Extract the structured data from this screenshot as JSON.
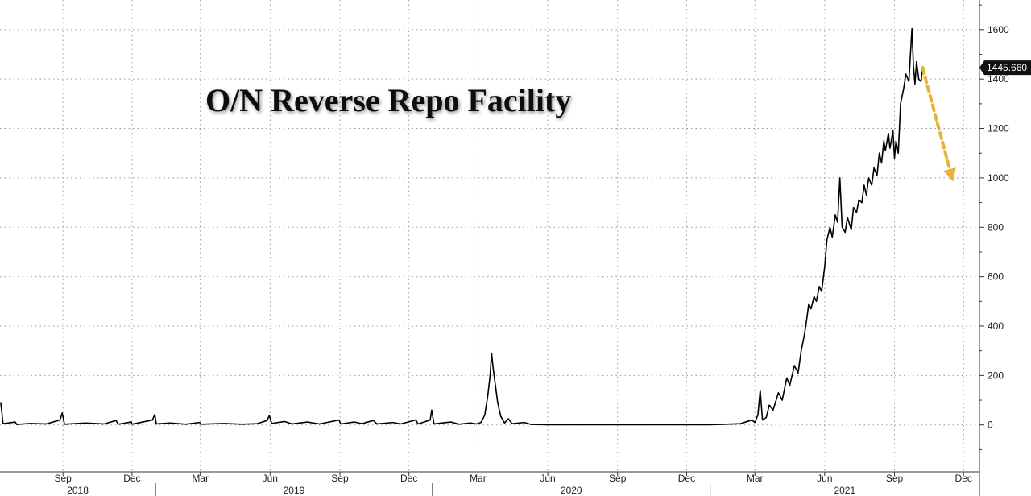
{
  "chart_data": {
    "type": "line",
    "title": "O/N Reverse Repo Facility",
    "current_value_label": "1445.660",
    "ylim": [
      -190,
      1720
    ],
    "xlim": [
      "2018-06-10",
      "2021-12-22"
    ],
    "y_ticks": [
      0,
      200,
      400,
      600,
      800,
      1000,
      1200,
      1400,
      1600
    ],
    "x_ticks": [
      {
        "label": "Sep",
        "date": "2018-09-01"
      },
      {
        "label": "Dec",
        "date": "2018-12-01"
      },
      {
        "label": "Mar",
        "date": "2019-03-01"
      },
      {
        "label": "Jun",
        "date": "2019-06-01"
      },
      {
        "label": "Sep",
        "date": "2019-09-01"
      },
      {
        "label": "Dec",
        "date": "2019-12-01"
      },
      {
        "label": "Mar",
        "date": "2020-03-01"
      },
      {
        "label": "Jun",
        "date": "2020-06-01"
      },
      {
        "label": "Sep",
        "date": "2020-09-01"
      },
      {
        "label": "Dec",
        "date": "2020-12-01"
      },
      {
        "label": "Mar",
        "date": "2021-03-01"
      },
      {
        "label": "Jun",
        "date": "2021-06-01"
      },
      {
        "label": "Sep",
        "date": "2021-09-01"
      },
      {
        "label": "Dec",
        "date": "2021-12-01"
      }
    ],
    "years": [
      {
        "label": "2018",
        "start": "2018-06-10",
        "end": "2019-01-01"
      },
      {
        "label": "2019",
        "start": "2019-01-01",
        "end": "2020-01-01"
      },
      {
        "label": "2020",
        "start": "2020-01-01",
        "end": "2021-01-01"
      },
      {
        "label": "2021",
        "start": "2021-01-01",
        "end": "2021-12-22"
      }
    ],
    "grid": true,
    "y_axis_position": "right",
    "series": [
      {
        "line_color": "#000000",
        "points": [
          [
            "2018-06-11",
            90
          ],
          [
            "2018-06-14",
            5
          ],
          [
            "2018-06-30",
            12
          ],
          [
            "2018-07-02",
            2
          ],
          [
            "2018-07-20",
            6
          ],
          [
            "2018-08-10",
            4
          ],
          [
            "2018-08-28",
            20
          ],
          [
            "2018-08-31",
            48
          ],
          [
            "2018-09-03",
            3
          ],
          [
            "2018-10-01",
            8
          ],
          [
            "2018-10-25",
            4
          ],
          [
            "2018-11-10",
            18
          ],
          [
            "2018-11-13",
            3
          ],
          [
            "2018-11-30",
            12
          ],
          [
            "2018-12-01",
            3
          ],
          [
            "2018-12-28",
            20
          ],
          [
            "2018-12-31",
            42
          ],
          [
            "2019-01-02",
            4
          ],
          [
            "2019-01-20",
            8
          ],
          [
            "2019-02-10",
            3
          ],
          [
            "2019-02-28",
            10
          ],
          [
            "2019-03-02",
            3
          ],
          [
            "2019-04-01",
            6
          ],
          [
            "2019-04-25",
            3
          ],
          [
            "2019-05-15",
            5
          ],
          [
            "2019-05-28",
            18
          ],
          [
            "2019-05-31",
            38
          ],
          [
            "2019-06-03",
            6
          ],
          [
            "2019-06-20",
            14
          ],
          [
            "2019-06-30",
            4
          ],
          [
            "2019-07-20",
            12
          ],
          [
            "2019-08-05",
            4
          ],
          [
            "2019-08-31",
            20
          ],
          [
            "2019-09-02",
            4
          ],
          [
            "2019-09-20",
            12
          ],
          [
            "2019-09-30",
            5
          ],
          [
            "2019-10-15",
            18
          ],
          [
            "2019-10-20",
            4
          ],
          [
            "2019-11-10",
            10
          ],
          [
            "2019-11-20",
            4
          ],
          [
            "2019-12-10",
            20
          ],
          [
            "2019-12-13",
            4
          ],
          [
            "2019-12-29",
            20
          ],
          [
            "2019-12-31",
            60
          ],
          [
            "2020-01-03",
            4
          ],
          [
            "2020-01-25",
            12
          ],
          [
            "2020-02-05",
            3
          ],
          [
            "2020-02-20",
            8
          ],
          [
            "2020-02-28",
            4
          ],
          [
            "2020-03-05",
            10
          ],
          [
            "2020-03-10",
            40
          ],
          [
            "2020-03-14",
            120
          ],
          [
            "2020-03-17",
            200
          ],
          [
            "2020-03-19",
            290
          ],
          [
            "2020-03-21",
            230
          ],
          [
            "2020-03-24",
            160
          ],
          [
            "2020-03-27",
            90
          ],
          [
            "2020-03-31",
            35
          ],
          [
            "2020-04-05",
            8
          ],
          [
            "2020-04-10",
            25
          ],
          [
            "2020-04-15",
            5
          ],
          [
            "2020-05-01",
            10
          ],
          [
            "2020-05-10",
            2
          ],
          [
            "2020-06-01",
            1
          ],
          [
            "2020-12-31",
            1
          ],
          [
            "2021-01-15",
            2
          ],
          [
            "2021-02-10",
            5
          ],
          [
            "2021-02-25",
            20
          ],
          [
            "2021-03-01",
            10
          ],
          [
            "2021-03-05",
            40
          ],
          [
            "2021-03-08",
            140
          ],
          [
            "2021-03-11",
            20
          ],
          [
            "2021-03-16",
            30
          ],
          [
            "2021-03-20",
            80
          ],
          [
            "2021-03-25",
            60
          ],
          [
            "2021-04-01",
            130
          ],
          [
            "2021-04-06",
            100
          ],
          [
            "2021-04-12",
            190
          ],
          [
            "2021-04-16",
            160
          ],
          [
            "2021-04-22",
            240
          ],
          [
            "2021-04-27",
            210
          ],
          [
            "2021-05-01",
            300
          ],
          [
            "2021-05-05",
            360
          ],
          [
            "2021-05-08",
            420
          ],
          [
            "2021-05-11",
            490
          ],
          [
            "2021-05-14",
            470
          ],
          [
            "2021-05-18",
            520
          ],
          [
            "2021-05-21",
            500
          ],
          [
            "2021-05-25",
            560
          ],
          [
            "2021-05-28",
            540
          ],
          [
            "2021-06-01",
            640
          ],
          [
            "2021-06-04",
            750
          ],
          [
            "2021-06-08",
            800
          ],
          [
            "2021-06-11",
            760
          ],
          [
            "2021-06-15",
            850
          ],
          [
            "2021-06-18",
            820
          ],
          [
            "2021-06-21",
            1000
          ],
          [
            "2021-06-24",
            800
          ],
          [
            "2021-06-28",
            780
          ],
          [
            "2021-07-01",
            840
          ],
          [
            "2021-07-06",
            790
          ],
          [
            "2021-07-09",
            880
          ],
          [
            "2021-07-13",
            860
          ],
          [
            "2021-07-16",
            910
          ],
          [
            "2021-07-20",
            900
          ],
          [
            "2021-07-23",
            970
          ],
          [
            "2021-07-26",
            930
          ],
          [
            "2021-07-29",
            1000
          ],
          [
            "2021-08-02",
            970
          ],
          [
            "2021-08-05",
            1040
          ],
          [
            "2021-08-09",
            1010
          ],
          [
            "2021-08-12",
            1100
          ],
          [
            "2021-08-15",
            1060
          ],
          [
            "2021-08-18",
            1150
          ],
          [
            "2021-08-20",
            1110
          ],
          [
            "2021-08-24",
            1180
          ],
          [
            "2021-08-26",
            1120
          ],
          [
            "2021-08-30",
            1190
          ],
          [
            "2021-09-01",
            1080
          ],
          [
            "2021-09-03",
            1150
          ],
          [
            "2021-09-06",
            1100
          ],
          [
            "2021-09-09",
            1300
          ],
          [
            "2021-09-13",
            1360
          ],
          [
            "2021-09-16",
            1420
          ],
          [
            "2021-09-20",
            1390
          ],
          [
            "2021-09-22",
            1500
          ],
          [
            "2021-09-24",
            1604
          ],
          [
            "2021-09-26",
            1450
          ],
          [
            "2021-09-28",
            1380
          ],
          [
            "2021-09-30",
            1470
          ],
          [
            "2021-10-03",
            1400
          ],
          [
            "2021-10-06",
            1390
          ],
          [
            "2021-10-08",
            1446
          ]
        ]
      },
      {
        "line_color": "#e8b23a",
        "dashed": true,
        "arrow": true,
        "points": [
          [
            "2021-10-08",
            1446
          ],
          [
            "2021-11-15",
            1010
          ]
        ]
      }
    ]
  }
}
